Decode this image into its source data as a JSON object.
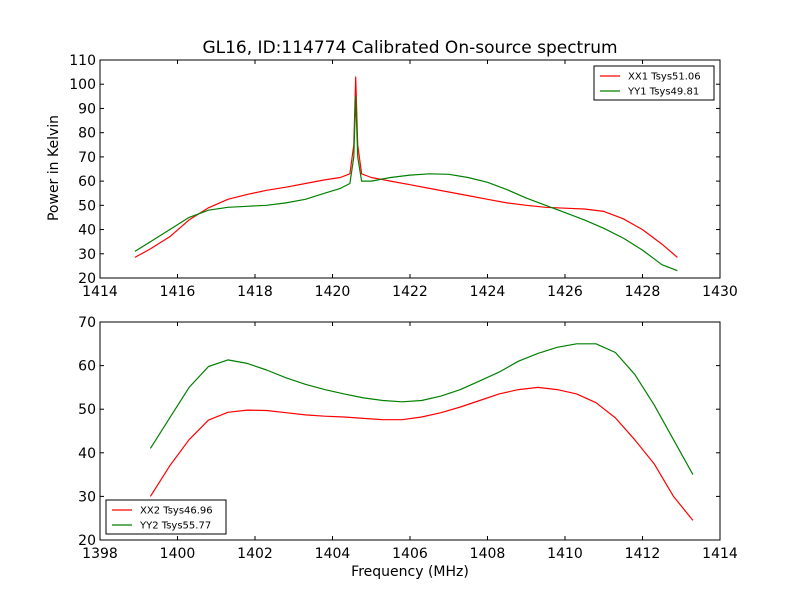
{
  "figure": {
    "title": "GL16, ID:114774 Calibrated On-source spectrum",
    "ylabel": "Power in Kelvin",
    "xlabel": "Frequency (MHz)"
  },
  "colors": {
    "red": "#ff0000",
    "green": "#008000"
  },
  "chart_data": [
    {
      "type": "line",
      "title": "GL16, ID:114774 Calibrated On-source spectrum",
      "xlabel": "",
      "ylabel": "Power in Kelvin",
      "xlim": [
        1414,
        1430
      ],
      "ylim": [
        20,
        110
      ],
      "xticks": [
        1414,
        1416,
        1418,
        1420,
        1422,
        1424,
        1426,
        1428,
        1430
      ],
      "yticks": [
        20,
        30,
        40,
        50,
        60,
        70,
        80,
        90,
        100,
        110
      ],
      "grid": false,
      "legend_position": "top-right",
      "series": [
        {
          "name": "XX1 Tsys51.06",
          "color": "#ff0000",
          "points": [
            [
              1414.9,
              28.5
            ],
            [
              1415.3,
              32
            ],
            [
              1415.8,
              37
            ],
            [
              1416.3,
              44
            ],
            [
              1416.8,
              49
            ],
            [
              1417.3,
              52.5
            ],
            [
              1417.8,
              54.5
            ],
            [
              1418.3,
              56.2
            ],
            [
              1418.8,
              57.5
            ],
            [
              1419.3,
              59
            ],
            [
              1419.8,
              60.5
            ],
            [
              1420.2,
              61.5
            ],
            [
              1420.45,
              63
            ],
            [
              1420.55,
              75
            ],
            [
              1420.6,
              103
            ],
            [
              1420.65,
              75
            ],
            [
              1420.75,
              63
            ],
            [
              1421.0,
              61.5
            ],
            [
              1421.5,
              60
            ],
            [
              1422.0,
              58.5
            ],
            [
              1422.5,
              57
            ],
            [
              1423.0,
              55.5
            ],
            [
              1423.5,
              54
            ],
            [
              1424.0,
              52.5
            ],
            [
              1424.5,
              51
            ],
            [
              1425.0,
              50
            ],
            [
              1425.5,
              49.2
            ],
            [
              1426.0,
              48.8
            ],
            [
              1426.5,
              48.5
            ],
            [
              1427.0,
              47.5
            ],
            [
              1427.5,
              44.5
            ],
            [
              1428.0,
              40
            ],
            [
              1428.5,
              34
            ],
            [
              1428.9,
              28.5
            ]
          ]
        },
        {
          "name": "YY1 Tsys49.81",
          "color": "#008000",
          "points": [
            [
              1414.9,
              31
            ],
            [
              1415.3,
              35
            ],
            [
              1415.8,
              40
            ],
            [
              1416.3,
              45
            ],
            [
              1416.8,
              48
            ],
            [
              1417.3,
              49.2
            ],
            [
              1417.8,
              49.6
            ],
            [
              1418.3,
              50
            ],
            [
              1418.8,
              51
            ],
            [
              1419.3,
              52.5
            ],
            [
              1419.8,
              55
            ],
            [
              1420.2,
              57
            ],
            [
              1420.45,
              59
            ],
            [
              1420.55,
              70
            ],
            [
              1420.6,
              95
            ],
            [
              1420.65,
              70
            ],
            [
              1420.75,
              60
            ],
            [
              1421.0,
              60
            ],
            [
              1421.5,
              61.5
            ],
            [
              1422.0,
              62.5
            ],
            [
              1422.5,
              63
            ],
            [
              1423.0,
              62.8
            ],
            [
              1423.5,
              61.5
            ],
            [
              1424.0,
              59.5
            ],
            [
              1424.5,
              56.5
            ],
            [
              1425.0,
              53
            ],
            [
              1425.5,
              50
            ],
            [
              1426.0,
              47
            ],
            [
              1426.5,
              44
            ],
            [
              1427.0,
              40.5
            ],
            [
              1427.5,
              36.5
            ],
            [
              1428.0,
              31.5
            ],
            [
              1428.5,
              25.5
            ],
            [
              1428.9,
              23
            ]
          ]
        }
      ]
    },
    {
      "type": "line",
      "title": "",
      "xlabel": "Frequency (MHz)",
      "ylabel": "",
      "xlim": [
        1398,
        1414
      ],
      "ylim": [
        20,
        70
      ],
      "xticks": [
        1398,
        1400,
        1402,
        1404,
        1406,
        1408,
        1410,
        1412,
        1414
      ],
      "yticks": [
        20,
        30,
        40,
        50,
        60,
        70
      ],
      "grid": false,
      "legend_position": "bottom-left",
      "series": [
        {
          "name": "XX2 Tsys46.96",
          "color": "#ff0000",
          "points": [
            [
              1399.3,
              30
            ],
            [
              1399.8,
              37
            ],
            [
              1400.3,
              43
            ],
            [
              1400.8,
              47.5
            ],
            [
              1401.3,
              49.3
            ],
            [
              1401.8,
              49.8
            ],
            [
              1402.3,
              49.7
            ],
            [
              1402.8,
              49.2
            ],
            [
              1403.3,
              48.7
            ],
            [
              1403.8,
              48.4
            ],
            [
              1404.3,
              48.2
            ],
            [
              1404.8,
              47.9
            ],
            [
              1405.3,
              47.6
            ],
            [
              1405.8,
              47.6
            ],
            [
              1406.3,
              48.2
            ],
            [
              1406.8,
              49.2
            ],
            [
              1407.3,
              50.5
            ],
            [
              1407.8,
              52
            ],
            [
              1408.3,
              53.5
            ],
            [
              1408.8,
              54.5
            ],
            [
              1409.3,
              55
            ],
            [
              1409.8,
              54.5
            ],
            [
              1410.3,
              53.5
            ],
            [
              1410.8,
              51.5
            ],
            [
              1411.3,
              48
            ],
            [
              1411.8,
              43
            ],
            [
              1412.3,
              37.5
            ],
            [
              1412.8,
              30
            ],
            [
              1413.3,
              24.5
            ]
          ]
        },
        {
          "name": "YY2 Tsys55.77",
          "color": "#008000",
          "points": [
            [
              1399.3,
              41
            ],
            [
              1399.8,
              48
            ],
            [
              1400.3,
              55
            ],
            [
              1400.8,
              59.8
            ],
            [
              1401.3,
              61.3
            ],
            [
              1401.8,
              60.5
            ],
            [
              1402.3,
              59
            ],
            [
              1402.8,
              57.2
            ],
            [
              1403.3,
              55.7
            ],
            [
              1403.8,
              54.5
            ],
            [
              1404.3,
              53.5
            ],
            [
              1404.8,
              52.6
            ],
            [
              1405.3,
              52
            ],
            [
              1405.8,
              51.7
            ],
            [
              1406.3,
              52
            ],
            [
              1406.8,
              53
            ],
            [
              1407.3,
              54.5
            ],
            [
              1407.8,
              56.5
            ],
            [
              1408.3,
              58.5
            ],
            [
              1408.8,
              61
            ],
            [
              1409.3,
              62.8
            ],
            [
              1409.8,
              64.2
            ],
            [
              1410.3,
              65
            ],
            [
              1410.8,
              65
            ],
            [
              1411.3,
              63
            ],
            [
              1411.8,
              58
            ],
            [
              1412.3,
              51
            ],
            [
              1412.8,
              43
            ],
            [
              1413.3,
              35
            ]
          ]
        }
      ]
    }
  ]
}
